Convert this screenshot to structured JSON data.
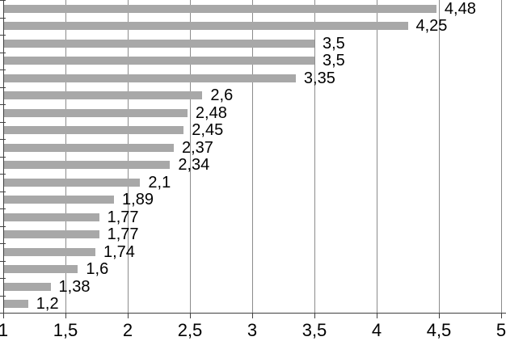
{
  "chart_data": {
    "type": "bar",
    "orientation": "horizontal",
    "title": "",
    "xlabel": "",
    "ylabel": "",
    "categories": [],
    "values": [
      4.48,
      4.25,
      3.5,
      3.5,
      3.35,
      2.6,
      2.48,
      2.45,
      2.37,
      2.34,
      2.1,
      1.89,
      1.77,
      1.77,
      1.74,
      1.6,
      1.38,
      1.2
    ],
    "value_labels": [
      "4,48",
      "4,25",
      "3,5",
      "3,5",
      "3,35",
      "2,6",
      "2,48",
      "2,45",
      "2,37",
      "2,34",
      "2,1",
      "1,89",
      "1,77",
      "1,77",
      "1,74",
      "1,6",
      "1,38",
      "1,2"
    ],
    "xlim": [
      1,
      5
    ],
    "xticks": [
      1,
      1.5,
      2,
      2.5,
      3,
      3.5,
      4,
      4.5,
      5
    ],
    "xtick_labels": [
      "1",
      "1,5",
      "2",
      "2,5",
      "3",
      "3,5",
      "4",
      "4,5",
      "5"
    ],
    "grid": true,
    "legend": false,
    "bar_color": "#a8a8a8",
    "gridline_color": "#8c8c8c",
    "axis_color": "#404040",
    "text_color": "#000000"
  }
}
